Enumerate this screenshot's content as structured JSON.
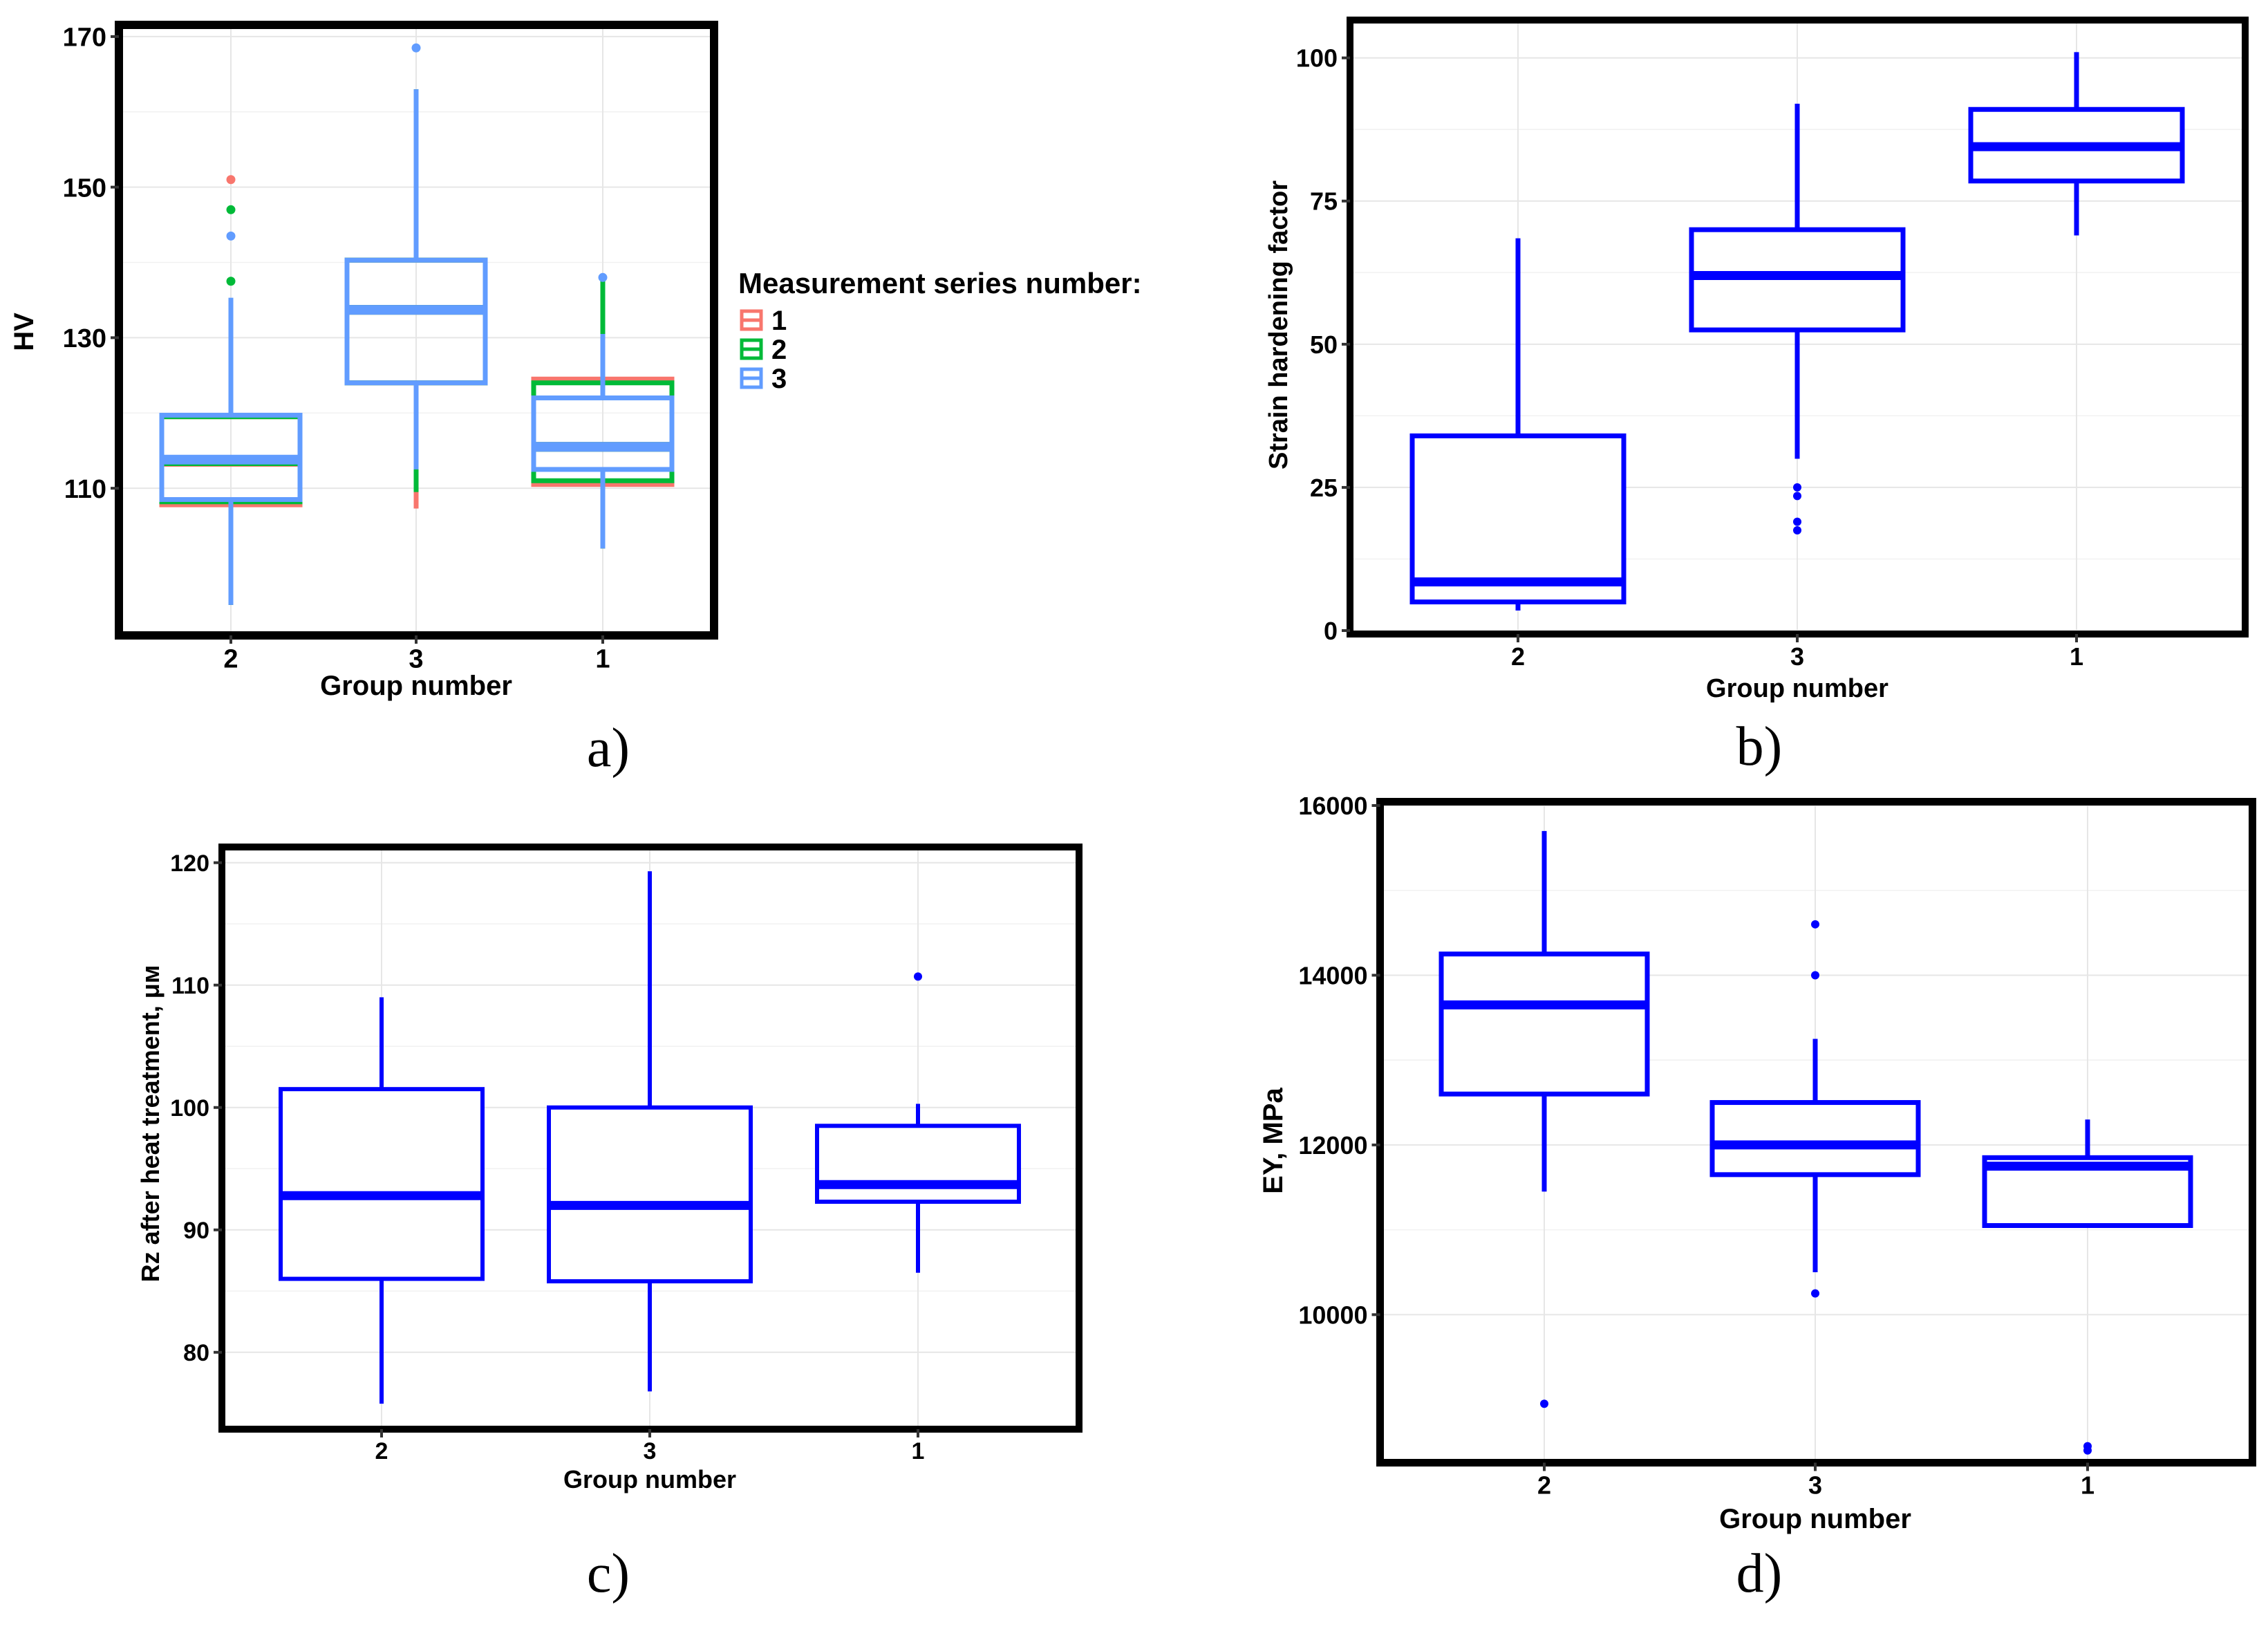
{
  "colors": {
    "series_1": "#f8766d",
    "series_2": "#00ba38",
    "series_3": "#619cff",
    "box": "#0000ff",
    "frame": "#000000",
    "grid": "#e6e6e6"
  },
  "chart_data": [
    {
      "id": "a",
      "panel_label": "a)",
      "type": "box",
      "title": "",
      "xlabel": "Group number",
      "ylabel": "HV",
      "categories": [
        "2",
        "3",
        "1"
      ],
      "ylim": [
        91,
        171
      ],
      "yticks": [
        110,
        130,
        150,
        170
      ],
      "legend": {
        "title": "Measurement series number:",
        "position": "right",
        "entries": [
          {
            "label": "1",
            "color_key": "series_1"
          },
          {
            "label": "2",
            "color_key": "series_2"
          },
          {
            "label": "3",
            "color_key": "series_3"
          }
        ]
      },
      "boxes": [
        {
          "category": "2",
          "series": "1",
          "color_key": "series_1",
          "q1": 107.8,
          "median": 113.5,
          "q3": 119.5,
          "whisker_low": 94.5,
          "whisker_high": 135,
          "outliers": [
            151
          ]
        },
        {
          "category": "2",
          "series": "2",
          "color_key": "series_2",
          "q1": 108.2,
          "median": 113.6,
          "q3": 119.5,
          "whisker_low": 94.5,
          "whisker_high": 135,
          "outliers": [
            147,
            137.5
          ]
        },
        {
          "category": "2",
          "series": "3",
          "color_key": "series_3",
          "q1": 108.5,
          "median": 113.8,
          "q3": 119.7,
          "whisker_low": 94.5,
          "whisker_high": 135.3,
          "outliers": [
            143.5
          ]
        },
        {
          "category": "3",
          "series": "1",
          "color_key": "series_1",
          "q1": 124,
          "median": 133.7,
          "q3": 140.3,
          "whisker_low": 107.3,
          "whisker_high": 163,
          "outliers": []
        },
        {
          "category": "3",
          "series": "2",
          "color_key": "series_2",
          "q1": 124,
          "median": 133.7,
          "q3": 140.3,
          "whisker_low": 109.5,
          "whisker_high": 163,
          "outliers": []
        },
        {
          "category": "3",
          "series": "3",
          "color_key": "series_3",
          "q1": 124,
          "median": 133.7,
          "q3": 140.3,
          "whisker_low": 112.5,
          "whisker_high": 163,
          "outliers": [
            168.5
          ]
        },
        {
          "category": "1",
          "series": "1",
          "color_key": "series_1",
          "q1": 110.5,
          "median": 115.5,
          "q3": 124.5,
          "whisker_low": 102,
          "whisker_high": 130.5,
          "outliers": []
        },
        {
          "category": "1",
          "series": "2",
          "color_key": "series_2",
          "q1": 111,
          "median": 115.5,
          "q3": 124,
          "whisker_low": 102,
          "whisker_high": 138,
          "outliers": []
        },
        {
          "category": "1",
          "series": "3",
          "color_key": "series_3",
          "q1": 112.5,
          "median": 115.5,
          "q3": 122,
          "whisker_low": 102,
          "whisker_high": 130.5,
          "outliers": [
            138
          ]
        }
      ]
    },
    {
      "id": "b",
      "panel_label": "b)",
      "type": "box",
      "title": "",
      "xlabel": "Group number",
      "ylabel": "Strain hardening factor",
      "categories": [
        "2",
        "3",
        "1"
      ],
      "ylim": [
        0,
        106
      ],
      "yticks": [
        0,
        25,
        50,
        75,
        100
      ],
      "boxes": [
        {
          "category": "2",
          "color_key": "box",
          "q1": 5,
          "median": 8.5,
          "q3": 34,
          "whisker_low": 3.5,
          "whisker_high": 68.5,
          "outliers": []
        },
        {
          "category": "3",
          "color_key": "box",
          "q1": 52.5,
          "median": 62,
          "q3": 70,
          "whisker_low": 30,
          "whisker_high": 92,
          "outliers": [
            25,
            23.5,
            19,
            17.5
          ]
        },
        {
          "category": "1",
          "color_key": "box",
          "q1": 78.5,
          "median": 84.5,
          "q3": 91,
          "whisker_low": 69,
          "whisker_high": 101,
          "outliers": []
        }
      ]
    },
    {
      "id": "c",
      "panel_label": "c)",
      "type": "box",
      "title": "",
      "xlabel": "Group number",
      "ylabel": "Rz after heat treatment, μм",
      "categories": [
        "2",
        "3",
        "1"
      ],
      "ylim": [
        74,
        121
      ],
      "yticks": [
        80,
        90,
        100,
        110,
        120
      ],
      "boxes": [
        {
          "category": "2",
          "color_key": "box",
          "q1": 86,
          "median": 92.8,
          "q3": 101.5,
          "whisker_low": 75.8,
          "whisker_high": 109,
          "outliers": []
        },
        {
          "category": "3",
          "color_key": "box",
          "q1": 85.8,
          "median": 92,
          "q3": 100,
          "whisker_low": 76.8,
          "whisker_high": 119.3,
          "outliers": []
        },
        {
          "category": "1",
          "color_key": "box",
          "q1": 92.3,
          "median": 93.7,
          "q3": 98.5,
          "whisker_low": 86.5,
          "whisker_high": 100.3,
          "outliers": [
            110.7
          ]
        }
      ]
    },
    {
      "id": "d",
      "panel_label": "d)",
      "type": "box",
      "title": "",
      "xlabel": "Group number",
      "ylabel": "EY, MPa",
      "categories": [
        "2",
        "3",
        "1"
      ],
      "ylim": [
        8300,
        16000
      ],
      "yticks": [
        10000,
        12000,
        14000,
        16000
      ],
      "boxes": [
        {
          "category": "2",
          "color_key": "box",
          "q1": 12600,
          "median": 13650,
          "q3": 14250,
          "whisker_low": 11450,
          "whisker_high": 15700,
          "outliers": [
            8950
          ]
        },
        {
          "category": "3",
          "color_key": "box",
          "q1": 11650,
          "median": 12000,
          "q3": 12500,
          "whisker_low": 10500,
          "whisker_high": 13250,
          "outliers": [
            14600,
            14000,
            10250
          ]
        },
        {
          "category": "1",
          "color_key": "box",
          "q1": 11050,
          "median": 11750,
          "q3": 11850,
          "whisker_low": 11050,
          "whisker_high": 12300,
          "outliers": [
            8450,
            8400
          ]
        }
      ]
    }
  ]
}
